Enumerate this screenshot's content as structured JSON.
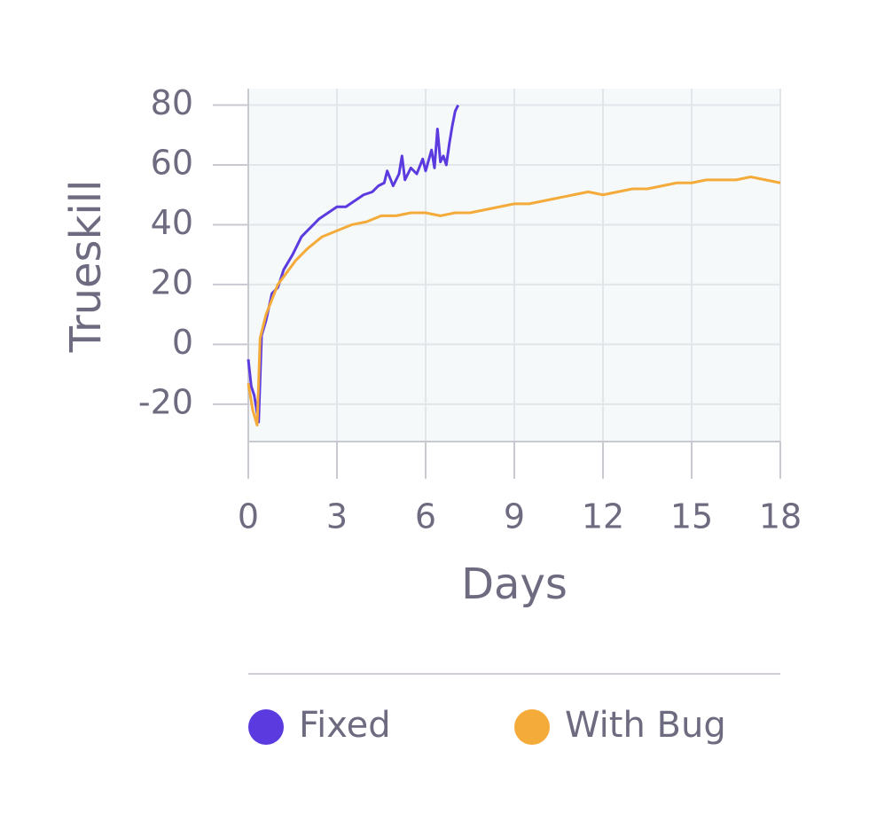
{
  "chart_data": {
    "type": "line",
    "x_label": "Days",
    "y_label": "Trueskill",
    "xlim": [
      0,
      18
    ],
    "xticks": [
      0,
      3,
      6,
      9,
      12,
      15,
      18
    ],
    "ylim": [
      -32.5,
      85.5
    ],
    "yticks": [
      -20,
      0,
      20,
      40,
      60,
      80
    ],
    "grid": true,
    "legend": "bottom",
    "series": [
      {
        "name": "Fixed",
        "color": "#5b3be0",
        "x": [
          0,
          0.1,
          0.2,
          0.35,
          0.45,
          0.6,
          0.8,
          1.0,
          1.2,
          1.5,
          1.8,
          2.1,
          2.4,
          2.7,
          3.0,
          3.3,
          3.6,
          3.9,
          4.2,
          4.4,
          4.6,
          4.7,
          4.9,
          5.1,
          5.2,
          5.3,
          5.5,
          5.7,
          5.9,
          6.0,
          6.2,
          6.3,
          6.4,
          6.5,
          6.6,
          6.7,
          6.8,
          6.9,
          7.0,
          7.1
        ],
        "values": [
          -5,
          -14,
          -17,
          -26,
          3,
          8,
          17,
          19,
          25,
          30,
          36,
          39,
          42,
          44,
          46,
          46,
          48,
          50,
          51,
          53,
          54,
          58,
          53,
          57,
          63,
          55,
          59,
          57,
          62,
          58,
          65,
          59,
          72,
          61,
          63,
          60,
          67,
          73,
          78,
          80
        ]
      },
      {
        "name": "With Bug",
        "color": "#f4ab3a",
        "x": [
          0,
          0.15,
          0.3,
          0.4,
          0.6,
          0.8,
          1.0,
          1.3,
          1.6,
          2.0,
          2.5,
          3.0,
          3.5,
          4.0,
          4.5,
          5.0,
          5.5,
          6.0,
          6.5,
          7.0,
          7.5,
          8.0,
          8.5,
          9.0,
          9.5,
          10,
          10.5,
          11,
          11.5,
          12,
          12.5,
          13,
          13.5,
          14,
          14.5,
          15,
          15.5,
          16,
          16.5,
          17,
          17.5,
          18
        ],
        "values": [
          -13,
          -22,
          -27,
          2,
          10,
          15,
          20,
          24,
          28,
          32,
          36,
          38,
          40,
          41,
          43,
          43,
          44,
          44,
          43,
          44,
          44,
          45,
          46,
          47,
          47,
          48,
          49,
          50,
          51,
          50,
          51,
          52,
          52,
          53,
          54,
          54,
          55,
          55,
          55,
          56,
          55,
          54
        ]
      }
    ]
  }
}
